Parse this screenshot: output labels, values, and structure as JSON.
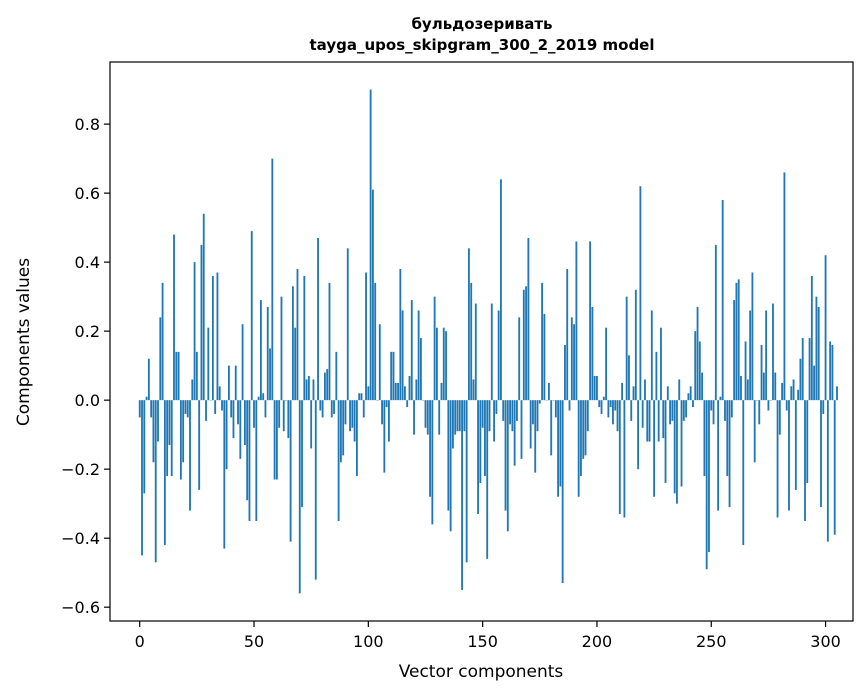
{
  "chart_data": {
    "type": "bar",
    "title": "бульдозеривать",
    "subtitle": "tayga_upos_skipgram_300_2_2019 model",
    "xlabel": "Vector components",
    "ylabel": "Components values",
    "xlim": [
      -13,
      312
    ],
    "ylim": [
      -0.64,
      0.98
    ],
    "xticks": [
      0,
      50,
      100,
      150,
      200,
      250,
      300
    ],
    "yticks": [
      -0.6,
      -0.4,
      -0.2,
      0.0,
      0.2,
      0.4,
      0.6,
      0.8
    ],
    "ytick_labels": [
      "−0.6",
      "−0.4",
      "−0.2",
      "0.0",
      "0.2",
      "0.4",
      "0.6",
      "0.8"
    ],
    "bar_color": "#1f77b4",
    "grid": false,
    "values": [
      -0.05,
      -0.45,
      -0.27,
      0.01,
      0.12,
      -0.05,
      -0.18,
      -0.47,
      -0.12,
      0.24,
      0.34,
      -0.42,
      -0.22,
      -0.13,
      -0.22,
      0.48,
      0.14,
      0.14,
      -0.23,
      -0.18,
      -0.04,
      -0.05,
      -0.32,
      0.06,
      0.4,
      0.14,
      -0.26,
      0.45,
      0.54,
      -0.06,
      0.21,
      0.0,
      0.36,
      -0.04,
      0.37,
      0.04,
      -0.03,
      -0.43,
      -0.2,
      0.1,
      -0.05,
      -0.11,
      0.1,
      -0.07,
      -0.17,
      0.22,
      -0.13,
      -0.29,
      -0.35,
      0.49,
      -0.08,
      -0.35,
      0.01,
      0.29,
      0.02,
      -0.05,
      0.27,
      0.15,
      0.7,
      -0.23,
      -0.23,
      -0.08,
      0.3,
      -0.09,
      0.0,
      -0.11,
      -0.41,
      0.33,
      0.21,
      0.38,
      -0.56,
      -0.31,
      0.36,
      0.06,
      0.07,
      -0.14,
      0.06,
      -0.52,
      0.47,
      -0.03,
      -0.05,
      0.08,
      0.09,
      0.34,
      -0.05,
      -0.04,
      0.14,
      -0.35,
      -0.18,
      -0.16,
      -0.07,
      0.44,
      -0.09,
      -0.08,
      -0.12,
      -0.22,
      0.02,
      0.02,
      -0.05,
      0.37,
      0.04,
      0.9,
      0.61,
      0.34,
      0.0,
      0.22,
      -0.07,
      -0.21,
      -0.02,
      -0.12,
      0.14,
      0.14,
      0.05,
      0.05,
      0.38,
      0.26,
      0.04,
      -0.02,
      0.07,
      0.29,
      -0.1,
      0.06,
      0.26,
      0.18,
      0.0,
      -0.08,
      -0.1,
      -0.28,
      -0.36,
      0.3,
      0.21,
      -0.1,
      0.05,
      0.21,
      0.2,
      -0.32,
      -0.38,
      -0.14,
      -0.1,
      -0.09,
      -0.09,
      -0.55,
      -0.09,
      -0.47,
      0.44,
      0.34,
      0.06,
      0.28,
      -0.33,
      -0.24,
      -0.08,
      -0.22,
      -0.46,
      -0.09,
      0.28,
      -0.12,
      -0.04,
      0.26,
      0.64,
      -0.06,
      -0.32,
      -0.38,
      -0.07,
      -0.09,
      -0.19,
      -0.06,
      0.24,
      -0.17,
      0.32,
      0.33,
      0.47,
      -0.14,
      -0.07,
      -0.21,
      -0.09,
      -0.01,
      0.34,
      0.25,
      0.0,
      0.05,
      -0.16,
      0.0,
      -0.05,
      -0.28,
      -0.25,
      -0.53,
      0.16,
      0.38,
      -0.03,
      0.24,
      0.22,
      0.46,
      -0.28,
      -0.22,
      -0.17,
      -0.16,
      -0.09,
      0.46,
      0.27,
      0.07,
      0.07,
      -0.02,
      -0.04,
      0.01,
      0.21,
      -0.05,
      -0.02,
      -0.07,
      -0.03,
      -0.09,
      -0.33,
      0.05,
      -0.34,
      0.3,
      0.13,
      -0.06,
      0.04,
      0.32,
      -0.2,
      0.62,
      -0.08,
      0.06,
      -0.12,
      -0.12,
      0.26,
      -0.28,
      0.14,
      -0.12,
      0.21,
      -0.11,
      -0.24,
      0.04,
      -0.07,
      -0.06,
      -0.27,
      -0.3,
      0.06,
      -0.25,
      -0.06,
      -0.05,
      0.02,
      0.04,
      -0.02,
      0.2,
      0.27,
      0.17,
      0.08,
      -0.22,
      -0.49,
      -0.44,
      -0.03,
      -0.07,
      0.45,
      -0.32,
      0.01,
      0.58,
      -0.06,
      -0.22,
      -0.31,
      -0.05,
      0.29,
      0.34,
      0.35,
      0.07,
      -0.42,
      0.17,
      0.06,
      0.26,
      0.37,
      -0.18,
      0.0,
      -0.07,
      0.16,
      0.08,
      0.26,
      -0.03,
      0.0,
      0.28,
      0.08,
      -0.34,
      -0.1,
      0.05,
      0.66,
      -0.03,
      -0.32,
      0.04,
      0.06,
      -0.26,
      0.03,
      0.12,
      0.18,
      -0.35,
      -0.24,
      0.18,
      0.36,
      0.1,
      0.3,
      0.27,
      -0.31,
      -0.04,
      0.42,
      -0.41,
      0.17,
      0.16,
      -0.39,
      0.04
    ]
  }
}
